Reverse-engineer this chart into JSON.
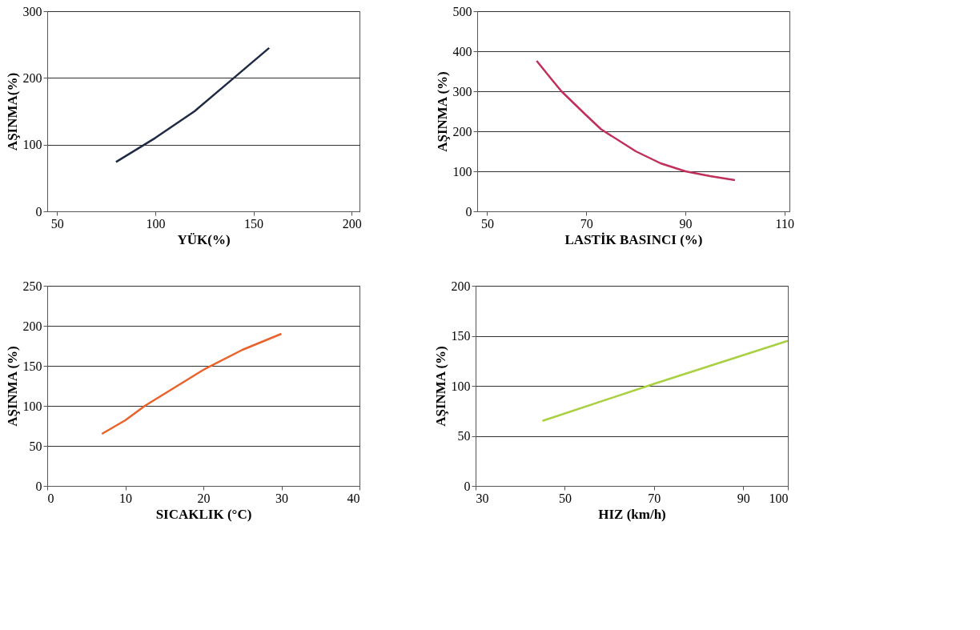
{
  "chart_data": [
    {
      "type": "line",
      "xlabel": "YÜK(%)",
      "ylabel": "AŞINMA(%)",
      "xlim": [
        45,
        204
      ],
      "xticks": [
        50,
        100,
        150,
        200
      ],
      "ylim": [
        0,
        300
      ],
      "yticks": [
        0,
        100,
        200,
        300
      ],
      "grid": "y",
      "series": [
        {
          "color": "#1f2a44",
          "x": [
            80,
            100,
            120,
            140,
            158
          ],
          "values": [
            74,
            110,
            150,
            200,
            245
          ]
        }
      ]
    },
    {
      "type": "line",
      "xlabel": "LASTİK BASINCI (%)",
      "ylabel": "AŞINMA (%)",
      "xlim": [
        48,
        111
      ],
      "xticks": [
        50,
        70,
        90,
        110
      ],
      "ylim": [
        0,
        500
      ],
      "yticks": [
        0,
        100,
        200,
        300,
        400,
        500
      ],
      "grid": "y",
      "series": [
        {
          "color": "#c0305a",
          "x": [
            60,
            63,
            65,
            70,
            73,
            80,
            85,
            90,
            95,
            100
          ],
          "values": [
            376,
            330,
            300,
            240,
            205,
            150,
            120,
            100,
            88,
            78
          ]
        }
      ]
    },
    {
      "type": "line",
      "xlabel": "SICAKLIK (°C)",
      "ylabel": "AŞINMA (%)",
      "xlim": [
        0,
        40
      ],
      "xticks": [
        0,
        10,
        20,
        30,
        40
      ],
      "ylim": [
        0,
        250
      ],
      "yticks": [
        0,
        50,
        100,
        150,
        200,
        250
      ],
      "grid": "y",
      "series": [
        {
          "color": "#e8622a",
          "x": [
            7,
            10,
            12.5,
            15,
            20,
            25,
            30
          ],
          "values": [
            65,
            82,
            100,
            115,
            145,
            170,
            190
          ]
        }
      ]
    },
    {
      "type": "line",
      "xlabel": "HIZ (km/h)",
      "ylabel": "AŞINMA (%)",
      "xlim": [
        30,
        100
      ],
      "xticks": [
        30,
        50,
        70,
        90,
        100
      ],
      "ylim": [
        0,
        200
      ],
      "yticks": [
        0,
        50,
        100,
        150,
        200
      ],
      "grid": "y",
      "series": [
        {
          "color": "#a8d040",
          "x": [
            45,
            70,
            100
          ],
          "values": [
            65,
            102,
            145
          ]
        }
      ]
    }
  ]
}
